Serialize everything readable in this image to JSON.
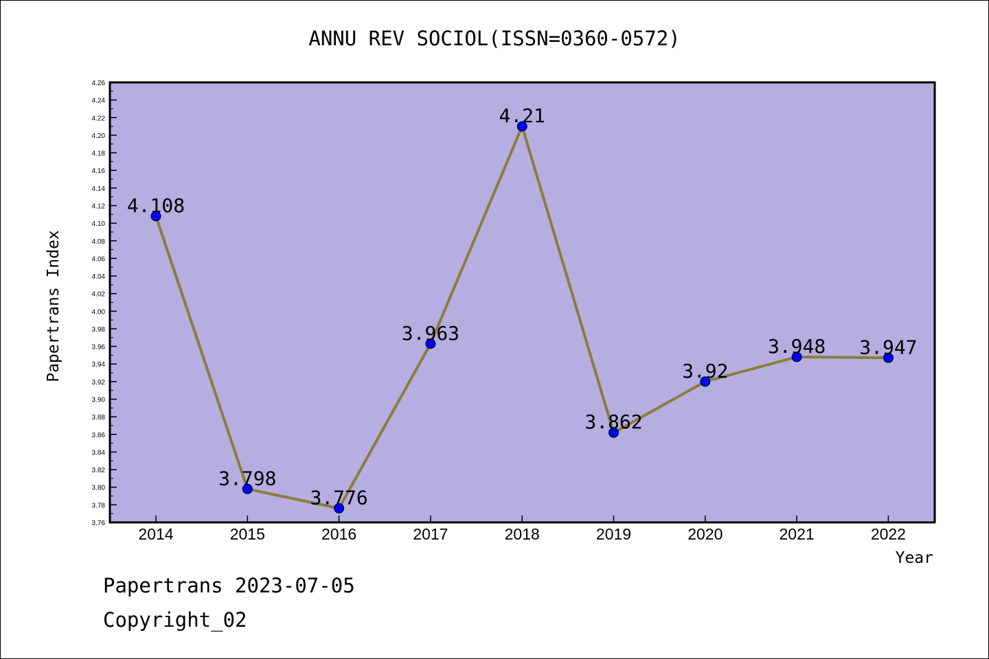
{
  "chart_data": {
    "type": "line",
    "title": "ANNU REV SOCIOL(ISSN=0360-0572)",
    "xlabel": "Year",
    "ylabel": "Papertrans Index",
    "categories": [
      "2014",
      "2015",
      "2016",
      "2017",
      "2018",
      "2019",
      "2020",
      "2021",
      "2022"
    ],
    "values": [
      4.108,
      3.798,
      3.776,
      3.963,
      4.21,
      3.862,
      3.92,
      3.948,
      3.947
    ],
    "value_labels": [
      "4.108",
      "3.798",
      "3.776",
      "3.963",
      "4.21",
      "3.862",
      "3.92",
      "3.948",
      "3.947"
    ],
    "ylim": [
      3.76,
      4.26
    ],
    "yticks": [
      "3.76",
      "3.78",
      "3.80",
      "3.82",
      "3.84",
      "3.86",
      "3.88",
      "3.90",
      "3.92",
      "3.94",
      "3.96",
      "3.98",
      "4.00",
      "4.02",
      "4.04",
      "4.06",
      "4.08",
      "4.10",
      "4.12",
      "4.14",
      "4.16",
      "4.18",
      "4.20",
      "4.22",
      "4.24",
      "4.26"
    ],
    "grid": false,
    "colors": {
      "plot_background": "#b4aee1",
      "line": "#8b7c3a",
      "marker": "#0000ff"
    }
  },
  "footer": {
    "line1": "Papertrans 2023-07-05",
    "line2": "Copyright_02"
  }
}
